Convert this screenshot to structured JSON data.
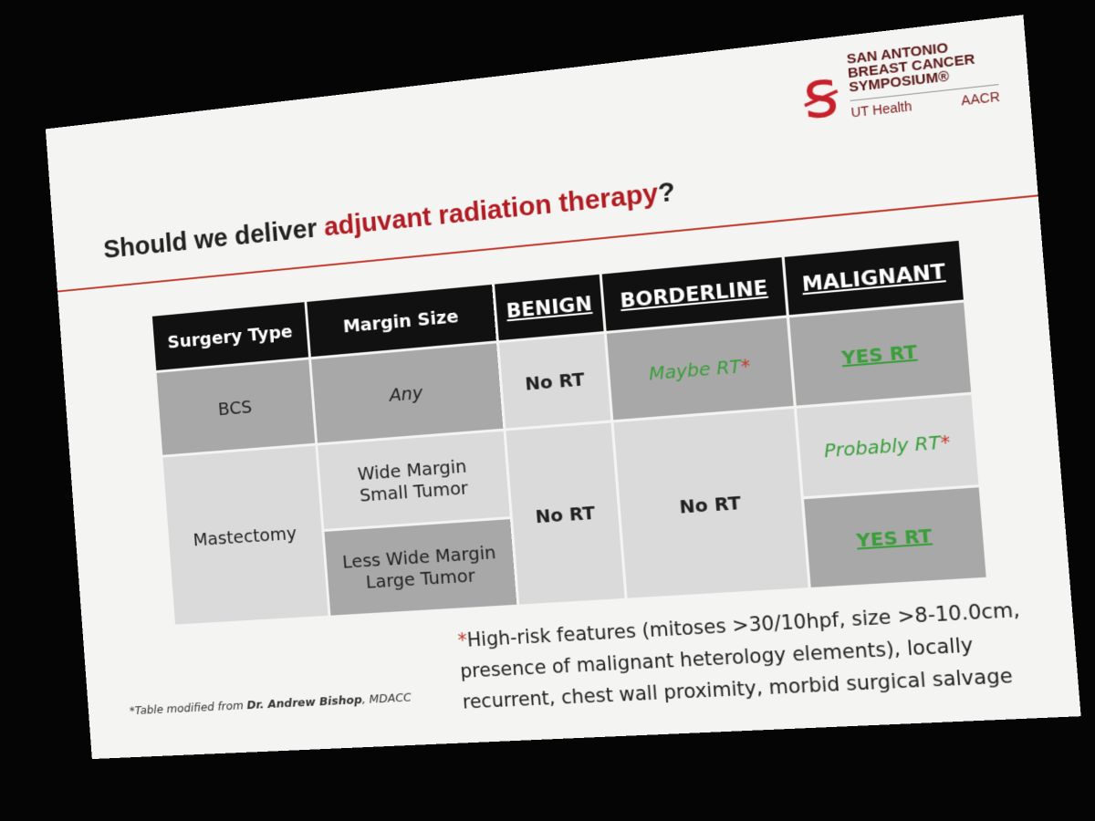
{
  "header": {
    "title_start": "Should we deliver",
    "title_highlight": "adjuvant radiation therapy",
    "title_end": "?"
  },
  "logo": {
    "line1": "SAN ANTONIO",
    "line2": "BREAST CANCER",
    "line3": "SYMPOSIUM®",
    "org1": "UT Health",
    "org2": "AACR"
  },
  "table": {
    "columns": [
      "Surgery Type",
      "Margin Size",
      "BENIGN",
      "BORDERLINE",
      "MALIGNANT"
    ],
    "rows": [
      [
        "BCS",
        "Any",
        "No RT",
        {
          "text": "Maybe RT",
          "mark": "*"
        },
        "YES RT"
      ],
      [
        "Mastectomy",
        [
          "Wide Margin",
          "Small Tumor"
        ],
        "No RT",
        "No RT",
        {
          "text": "Probably RT",
          "mark": "*"
        }
      ],
      [
        [
          "Less Wide Margin",
          "Large Tumor"
        ],
        "YES RT"
      ]
    ]
  },
  "footnotes": {
    "source_prefix": "*Table modified from",
    "source_author": "Dr. Andrew Bishop",
    "source_suffix": ", MDACC",
    "risk_mark": "*",
    "risk_text": "High-risk features (mitoses >30/10hpf, size >8-10.0cm, presence of malignant heterology elements), locally recurrent, chest wall proximity, morbid surgical salvage"
  }
}
